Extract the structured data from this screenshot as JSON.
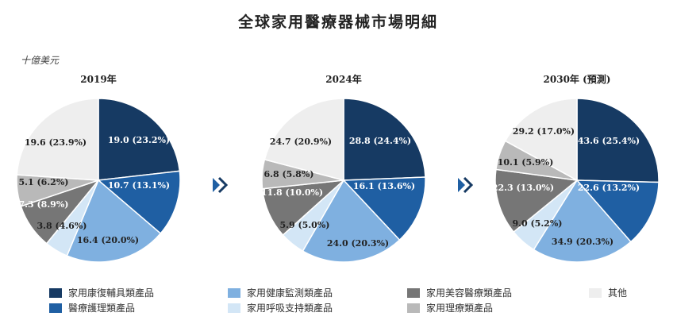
{
  "chart_data": {
    "type": "pie",
    "title": "全球家用醫療器械市場明細",
    "unit": "十億美元",
    "categories": [
      "家用康復輔具類產品",
      "醫療護理類產品",
      "家用健康監測類產品",
      "家用呼吸支持類產品",
      "家用美容醫療類產品",
      "家用理療類產品",
      "其他"
    ],
    "colors": [
      "#163a63",
      "#1f5fa3",
      "#7fb0e0",
      "#d3e6f6",
      "#767676",
      "#b9b9b9",
      "#eeeeee"
    ],
    "label_colors": [
      "#ffffff",
      "#ffffff",
      "#222222",
      "#222222",
      "#ffffff",
      "#222222",
      "#222222"
    ],
    "pies": [
      {
        "name": "2019年",
        "values": [
          19.0,
          10.7,
          16.4,
          3.8,
          7.3,
          5.1,
          19.6
        ],
        "labels": [
          "19.0 (23.2%)",
          "10.7 (13.1%)",
          "16.4 (20.0%)",
          "3.8 (4.6%)",
          "7.3 (8.9%)",
          "5.1 (6.2%)",
          "19.6 (23.9%)"
        ]
      },
      {
        "name": "2024年",
        "values": [
          28.8,
          16.1,
          24.0,
          5.9,
          11.8,
          6.8,
          24.7
        ],
        "labels": [
          "28.8 (24.4%)",
          "16.1 (13.6%)",
          "24.0 (20.3%)",
          "5.9 (5.0%)",
          "11.8 (10.0%)",
          "6.8 (5.8%)",
          "24.7 (20.9%)"
        ]
      },
      {
        "name": "2030年 (預測)",
        "values": [
          43.6,
          22.6,
          34.9,
          9.0,
          22.3,
          10.1,
          29.2
        ],
        "labels": [
          "43.6 (25.4%)",
          "22.6 (13.2%)",
          "34.9 (20.3%)",
          "9.0 (5.2%)",
          "22.3 (13.0%)",
          "10.1 (5.9%)",
          "29.2 (17.0%)"
        ]
      }
    ]
  }
}
